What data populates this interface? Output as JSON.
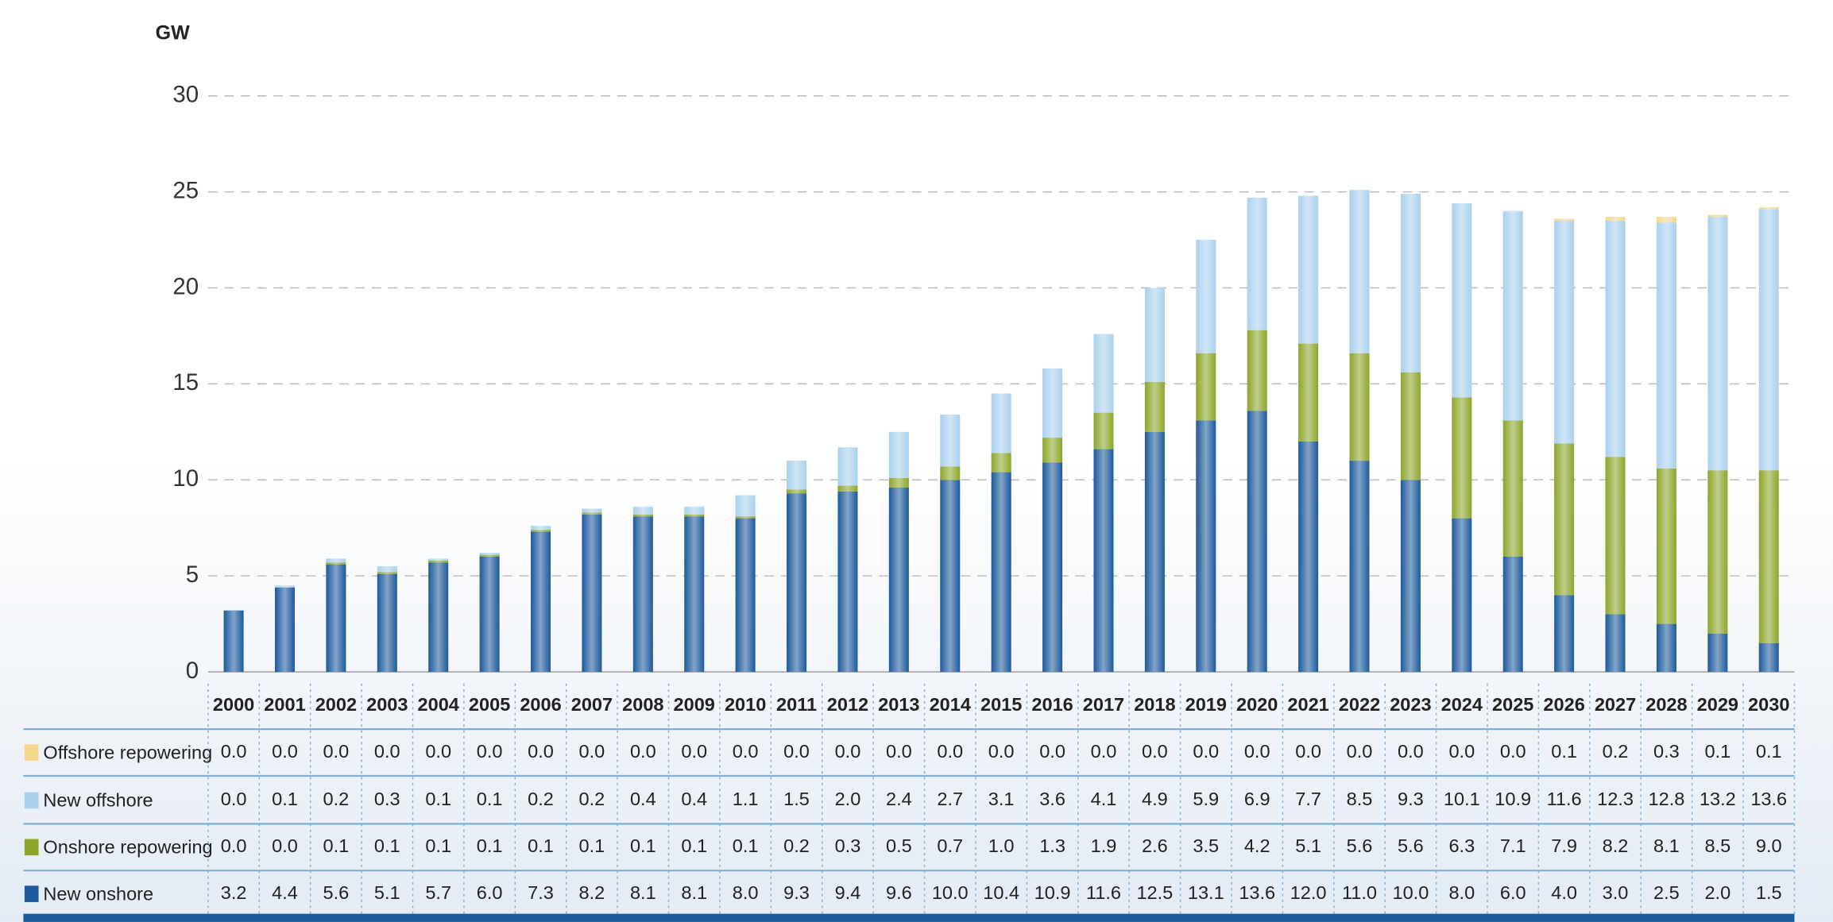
{
  "chart_data": {
    "type": "stacked_bar",
    "y_label": "GW",
    "categories": [
      "2000",
      "2001",
      "2002",
      "2003",
      "2004",
      "2005",
      "2006",
      "2007",
      "2008",
      "2009",
      "2010",
      "2011",
      "2012",
      "2013",
      "2014",
      "2015",
      "2016",
      "2017",
      "2018",
      "2019",
      "2020",
      "2021",
      "2022",
      "2023",
      "2024",
      "2025",
      "2026",
      "2027",
      "2028",
      "2029",
      "2030"
    ],
    "series": [
      {
        "name": "Offshore repowering",
        "color": "#f5d68c",
        "values": [
          0,
          0,
          0,
          0,
          0,
          0,
          0,
          0,
          0,
          0,
          0,
          0,
          0,
          0,
          0,
          0,
          0,
          0,
          0,
          0,
          0,
          0,
          0,
          0,
          0,
          0,
          0.1,
          0.2,
          0.3,
          0.1,
          0.1
        ],
        "value_labels": [
          "0.0",
          "0.0",
          "0.0",
          "0.0",
          "0.0",
          "0.0",
          "0.0",
          "0.0",
          "0.0",
          "0.0",
          "0.0",
          "0.0",
          "0.0",
          "0.0",
          "0.0",
          "0.0",
          "0.0",
          "0.0",
          "0.0",
          "0.0",
          "0.0",
          "0.0",
          "0.0",
          "0.0",
          "0.0",
          "0.0",
          "0.1",
          "0.2",
          "0.3",
          "0.1",
          "0.1"
        ]
      },
      {
        "name": "New offshore",
        "color": "#a9d1ee",
        "values": [
          0,
          0.1,
          0.2,
          0.3,
          0.1,
          0.1,
          0.2,
          0.2,
          0.4,
          0.4,
          1.1,
          1.5,
          2,
          2.4,
          2.7,
          3.1,
          3.6,
          4.1,
          4.9,
          5.9,
          6.9,
          7.7,
          8.5,
          9.3,
          10.1,
          10.9,
          11.6,
          12.3,
          12.8,
          13.2,
          13.6
        ],
        "value_labels": [
          "0.0",
          "0.1",
          "0.2",
          "0.3",
          "0.1",
          "0.1",
          "0.2",
          "0.2",
          "0.4",
          "0.4",
          "1.1",
          "1.5",
          "2.0",
          "2.4",
          "2.7",
          "3.1",
          "3.6",
          "4.1",
          "4.9",
          "5.9",
          "6.9",
          "7.7",
          "8.5",
          "9.3",
          "10.1",
          "10.9",
          "11.6",
          "12.3",
          "12.8",
          "13.2",
          "13.6"
        ]
      },
      {
        "name": "Onshore repowering",
        "color": "#8ca62b",
        "values": [
          0,
          0,
          0.1,
          0.1,
          0.1,
          0.1,
          0.1,
          0.1,
          0.1,
          0.1,
          0.1,
          0.2,
          0.3,
          0.5,
          0.7,
          1,
          1.3,
          1.9,
          2.6,
          3.5,
          4.2,
          5.1,
          5.6,
          5.6,
          6.3,
          7.1,
          7.9,
          8.2,
          8.1,
          8.5,
          9
        ],
        "value_labels": [
          "0.0",
          "0.0",
          "0.1",
          "0.1",
          "0.1",
          "0.1",
          "0.1",
          "0.1",
          "0.1",
          "0.1",
          "0.1",
          "0.2",
          "0.3",
          "0.5",
          "0.7",
          "1.0",
          "1.3",
          "1.9",
          "2.6",
          "3.5",
          "4.2",
          "5.1",
          "5.6",
          "5.6",
          "6.3",
          "7.1",
          "7.9",
          "8.2",
          "8.1",
          "8.5",
          "9.0"
        ]
      },
      {
        "name": "New onshore",
        "color": "#1d5a9b",
        "values": [
          3.2,
          4.4,
          5.6,
          5.1,
          5.7,
          6,
          7.3,
          8.2,
          8.1,
          8.1,
          8,
          9.3,
          9.4,
          9.6,
          10,
          10.4,
          10.9,
          11.6,
          12.5,
          13.1,
          13.6,
          12,
          11,
          10,
          8,
          6,
          4,
          3,
          2.5,
          2,
          1.5
        ],
        "value_labels": [
          "3.2",
          "4.4",
          "5.6",
          "5.1",
          "5.7",
          "6.0",
          "7.3",
          "8.2",
          "8.1",
          "8.1",
          "8.0",
          "9.3",
          "9.4",
          "9.6",
          "10.0",
          "10.4",
          "10.9",
          "11.6",
          "12.5",
          "13.1",
          "13.6",
          "12.0",
          "11.0",
          "10.0",
          "8.0",
          "6.0",
          "4.0",
          "3.0",
          "2.5",
          "2.0",
          "1.5"
        ]
      }
    ],
    "ylim": [
      0,
      30
    ],
    "yticks": [
      0,
      5,
      10,
      15,
      20,
      25,
      30
    ],
    "grid": true
  }
}
